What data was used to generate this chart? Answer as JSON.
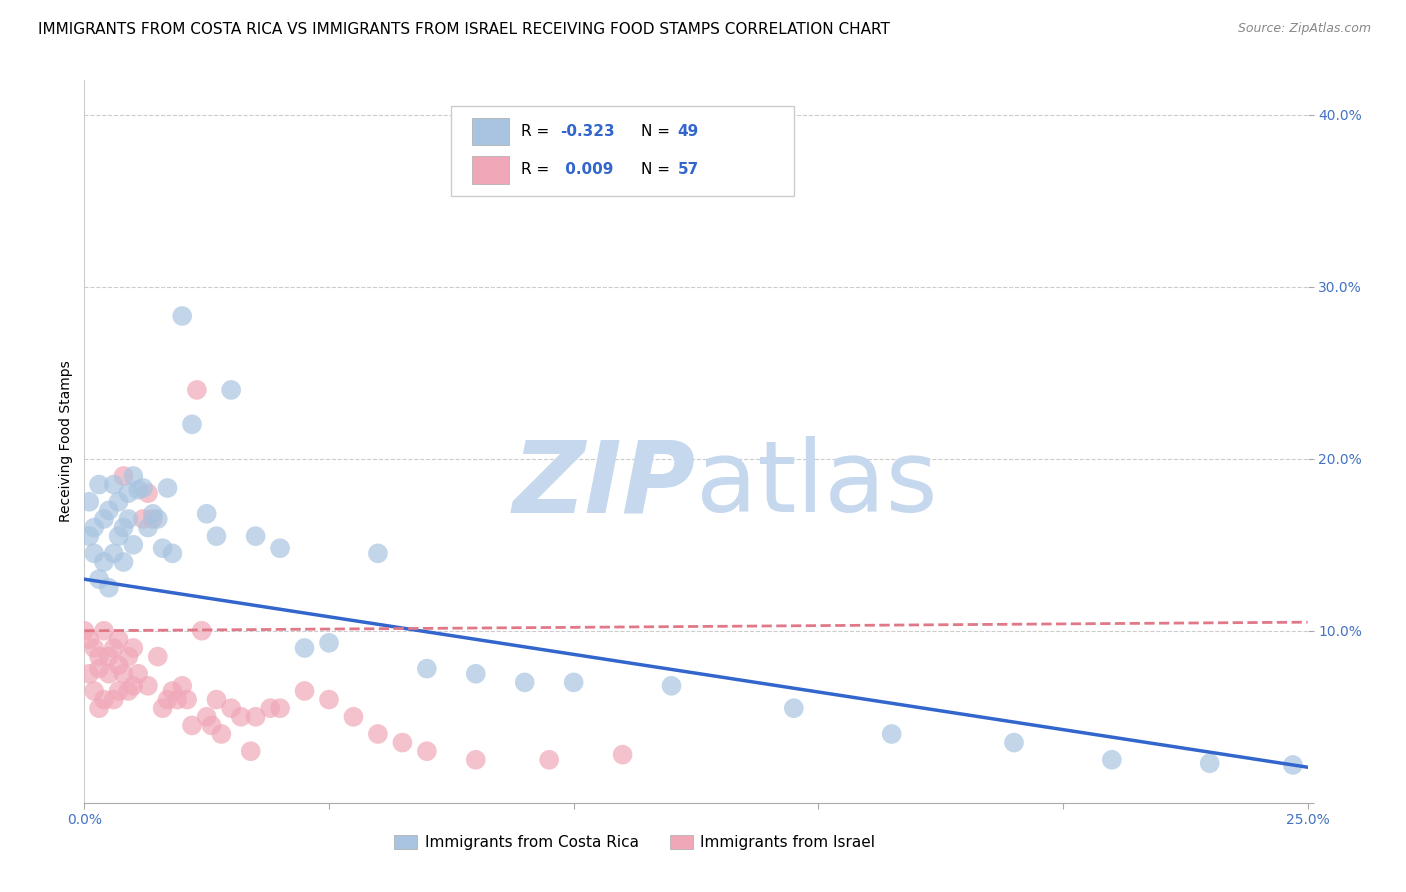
{
  "title": "IMMIGRANTS FROM COSTA RICA VS IMMIGRANTS FROM ISRAEL RECEIVING FOOD STAMPS CORRELATION CHART",
  "source": "Source: ZipAtlas.com",
  "ylabel": "Receiving Food Stamps",
  "xlim": [
    0.0,
    0.25
  ],
  "ylim": [
    0.0,
    0.42
  ],
  "costa_rica_color": "#a8c4e0",
  "israel_color": "#f0a8b8",
  "costa_rica_line_color": "#3366cc",
  "israel_line_color": "#e07888",
  "watermark_zip": "ZIP",
  "watermark_atlas": "atlas",
  "costa_rica_R": -0.323,
  "costa_rica_N": 49,
  "israel_R": 0.009,
  "israel_N": 57,
  "costa_rica_scatter_x": [
    0.001,
    0.001,
    0.002,
    0.002,
    0.003,
    0.003,
    0.004,
    0.004,
    0.005,
    0.005,
    0.006,
    0.006,
    0.007,
    0.007,
    0.008,
    0.008,
    0.009,
    0.009,
    0.01,
    0.01,
    0.011,
    0.012,
    0.013,
    0.014,
    0.015,
    0.016,
    0.017,
    0.018,
    0.02,
    0.022,
    0.025,
    0.027,
    0.03,
    0.035,
    0.04,
    0.045,
    0.05,
    0.06,
    0.07,
    0.08,
    0.09,
    0.1,
    0.12,
    0.145,
    0.165,
    0.19,
    0.21,
    0.23,
    0.247
  ],
  "costa_rica_scatter_y": [
    0.175,
    0.155,
    0.16,
    0.145,
    0.185,
    0.13,
    0.165,
    0.14,
    0.17,
    0.125,
    0.185,
    0.145,
    0.175,
    0.155,
    0.16,
    0.14,
    0.18,
    0.165,
    0.19,
    0.15,
    0.182,
    0.183,
    0.16,
    0.168,
    0.165,
    0.148,
    0.183,
    0.145,
    0.283,
    0.22,
    0.168,
    0.155,
    0.24,
    0.155,
    0.148,
    0.09,
    0.093,
    0.145,
    0.078,
    0.075,
    0.07,
    0.07,
    0.068,
    0.055,
    0.04,
    0.035,
    0.025,
    0.023,
    0.022
  ],
  "israel_scatter_x": [
    0.0,
    0.001,
    0.001,
    0.002,
    0.002,
    0.003,
    0.003,
    0.003,
    0.004,
    0.004,
    0.005,
    0.005,
    0.006,
    0.006,
    0.007,
    0.007,
    0.007,
    0.008,
    0.008,
    0.009,
    0.009,
    0.01,
    0.01,
    0.011,
    0.012,
    0.013,
    0.013,
    0.014,
    0.015,
    0.016,
    0.017,
    0.018,
    0.019,
    0.02,
    0.021,
    0.022,
    0.023,
    0.024,
    0.025,
    0.026,
    0.027,
    0.028,
    0.03,
    0.032,
    0.034,
    0.035,
    0.038,
    0.04,
    0.045,
    0.05,
    0.055,
    0.06,
    0.065,
    0.07,
    0.08,
    0.095,
    0.11
  ],
  "israel_scatter_y": [
    0.1,
    0.095,
    0.075,
    0.09,
    0.065,
    0.085,
    0.078,
    0.055,
    0.1,
    0.06,
    0.085,
    0.075,
    0.09,
    0.06,
    0.08,
    0.095,
    0.065,
    0.19,
    0.075,
    0.085,
    0.065,
    0.09,
    0.068,
    0.075,
    0.165,
    0.18,
    0.068,
    0.165,
    0.085,
    0.055,
    0.06,
    0.065,
    0.06,
    0.068,
    0.06,
    0.045,
    0.24,
    0.1,
    0.05,
    0.045,
    0.06,
    0.04,
    0.055,
    0.05,
    0.03,
    0.05,
    0.055,
    0.055,
    0.065,
    0.06,
    0.05,
    0.04,
    0.035,
    0.03,
    0.025,
    0.025,
    0.028
  ],
  "background_color": "#ffffff",
  "grid_color": "#cccccc",
  "title_fontsize": 11,
  "axis_label_fontsize": 10,
  "tick_fontsize": 10,
  "tick_color": "#4472c4",
  "watermark_color_zip": "#c5d8ee",
  "watermark_color_atlas": "#c5d8ee",
  "watermark_fontsize": 72
}
